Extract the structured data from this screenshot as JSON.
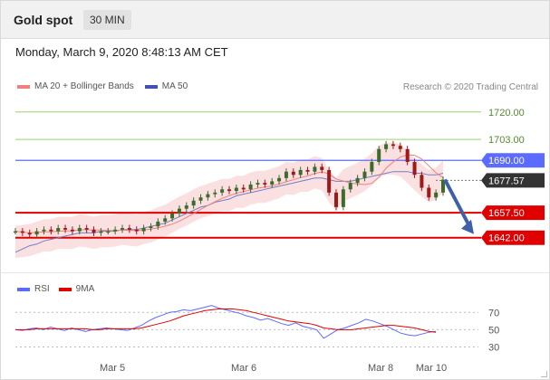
{
  "header": {
    "title": "Gold spot",
    "timeframe": "30 MIN"
  },
  "timestamp": "Monday, March 9, 2020 8:48:13 AM CET",
  "legend": {
    "items": [
      {
        "label": "MA 20 + Bollinger Bands",
        "color": "#f08080"
      },
      {
        "label": "MA 50",
        "color": "#3f51b5"
      }
    ]
  },
  "credit": "Research © 2020 Trading Central",
  "price_levels": [
    {
      "label": "1720.00",
      "value": 1720.0,
      "style": "thin-green"
    },
    {
      "label": "1703.00",
      "value": 1703.0,
      "style": "thin-green"
    },
    {
      "label": "1690.00",
      "value": 1690.0,
      "style": "blue"
    },
    {
      "label": "1677.57",
      "value": 1677.57,
      "style": "current"
    },
    {
      "label": "1657.50",
      "value": 1657.5,
      "style": "red"
    },
    {
      "label": "1642.00",
      "value": 1642.0,
      "style": "red"
    }
  ],
  "colors": {
    "red": "#e00000",
    "blue": "#5c6bff",
    "green": "#9ad36a",
    "current": "#333333",
    "arrow": "#3f5fa6",
    "candle_up": "#3d6b2a",
    "candle_down": "#a01818",
    "rsi": "#5c6bff",
    "ma9": "#e00000"
  },
  "rsi_legend": {
    "items": [
      {
        "label": "RSI",
        "color": "#5c6bff"
      },
      {
        "label": "9MA",
        "color": "#e00000"
      }
    ]
  },
  "rsi_levels": [
    "70",
    "50",
    "30"
  ],
  "x_labels": [
    "Mar 5",
    "Mar 6",
    "Mar 8",
    "Mar 10"
  ],
  "chart_data": {
    "type": "line",
    "close": [
      1646,
      1645,
      1644,
      1646,
      1647,
      1646,
      1648,
      1647,
      1646,
      1648,
      1647,
      1645,
      1646,
      1646,
      1647,
      1648,
      1647,
      1646,
      1648,
      1649,
      1652,
      1654,
      1657,
      1660,
      1662,
      1665,
      1667,
      1669,
      1670,
      1672,
      1671,
      1673,
      1672,
      1675,
      1676,
      1675,
      1677,
      1679,
      1683,
      1681,
      1684,
      1683,
      1686,
      1684,
      1670,
      1661,
      1672,
      1676,
      1679,
      1683,
      1689,
      1697,
      1700,
      1699,
      1697,
      1689,
      1681,
      1673,
      1667,
      1670,
      1678
    ],
    "ma50": [
      1633,
      1635,
      1637,
      1638,
      1640,
      1641,
      1642,
      1643,
      1644,
      1645,
      1645,
      1645,
      1646,
      1646,
      1646,
      1647,
      1647,
      1647,
      1648,
      1649,
      1650,
      1651,
      1653,
      1655,
      1657,
      1659,
      1661,
      1662,
      1664,
      1665,
      1666,
      1668,
      1669,
      1670,
      1671,
      1672,
      1673,
      1674,
      1675,
      1676,
      1677,
      1678,
      1679,
      1679,
      1678,
      1677,
      1677,
      1677,
      1678,
      1679,
      1680,
      1681,
      1682,
      1683,
      1683,
      1683,
      1682,
      1682,
      1681,
      1681,
      1682
    ],
    "ylim": [
      1625,
      1730
    ],
    "rsi": [
      50,
      49,
      51,
      52,
      50,
      53,
      51,
      49,
      52,
      50,
      48,
      50,
      51,
      52,
      51,
      50,
      49,
      52,
      55,
      60,
      64,
      67,
      70,
      71,
      73,
      72,
      74,
      76,
      78,
      75,
      73,
      71,
      69,
      66,
      64,
      61,
      63,
      60,
      57,
      55,
      58,
      54,
      52,
      50,
      40,
      45,
      50,
      52,
      55,
      58,
      62,
      60,
      57,
      54,
      50,
      46,
      44,
      43,
      45,
      47,
      48
    ],
    "rsi_ma9": [
      50,
      50,
      50,
      51,
      51,
      51,
      51,
      51,
      51,
      51,
      51,
      50,
      50,
      51,
      51,
      51,
      51,
      51,
      52,
      54,
      56,
      58,
      60,
      63,
      66,
      68,
      70,
      72,
      73,
      74,
      74,
      74,
      73,
      72,
      70,
      68,
      66,
      64,
      62,
      60,
      59,
      58,
      57,
      55,
      52,
      51,
      50,
      50,
      50,
      51,
      52,
      53,
      54,
      55,
      55,
      54,
      53,
      52,
      50,
      48,
      47
    ],
    "rsi_ylim": [
      20,
      85
    ]
  }
}
